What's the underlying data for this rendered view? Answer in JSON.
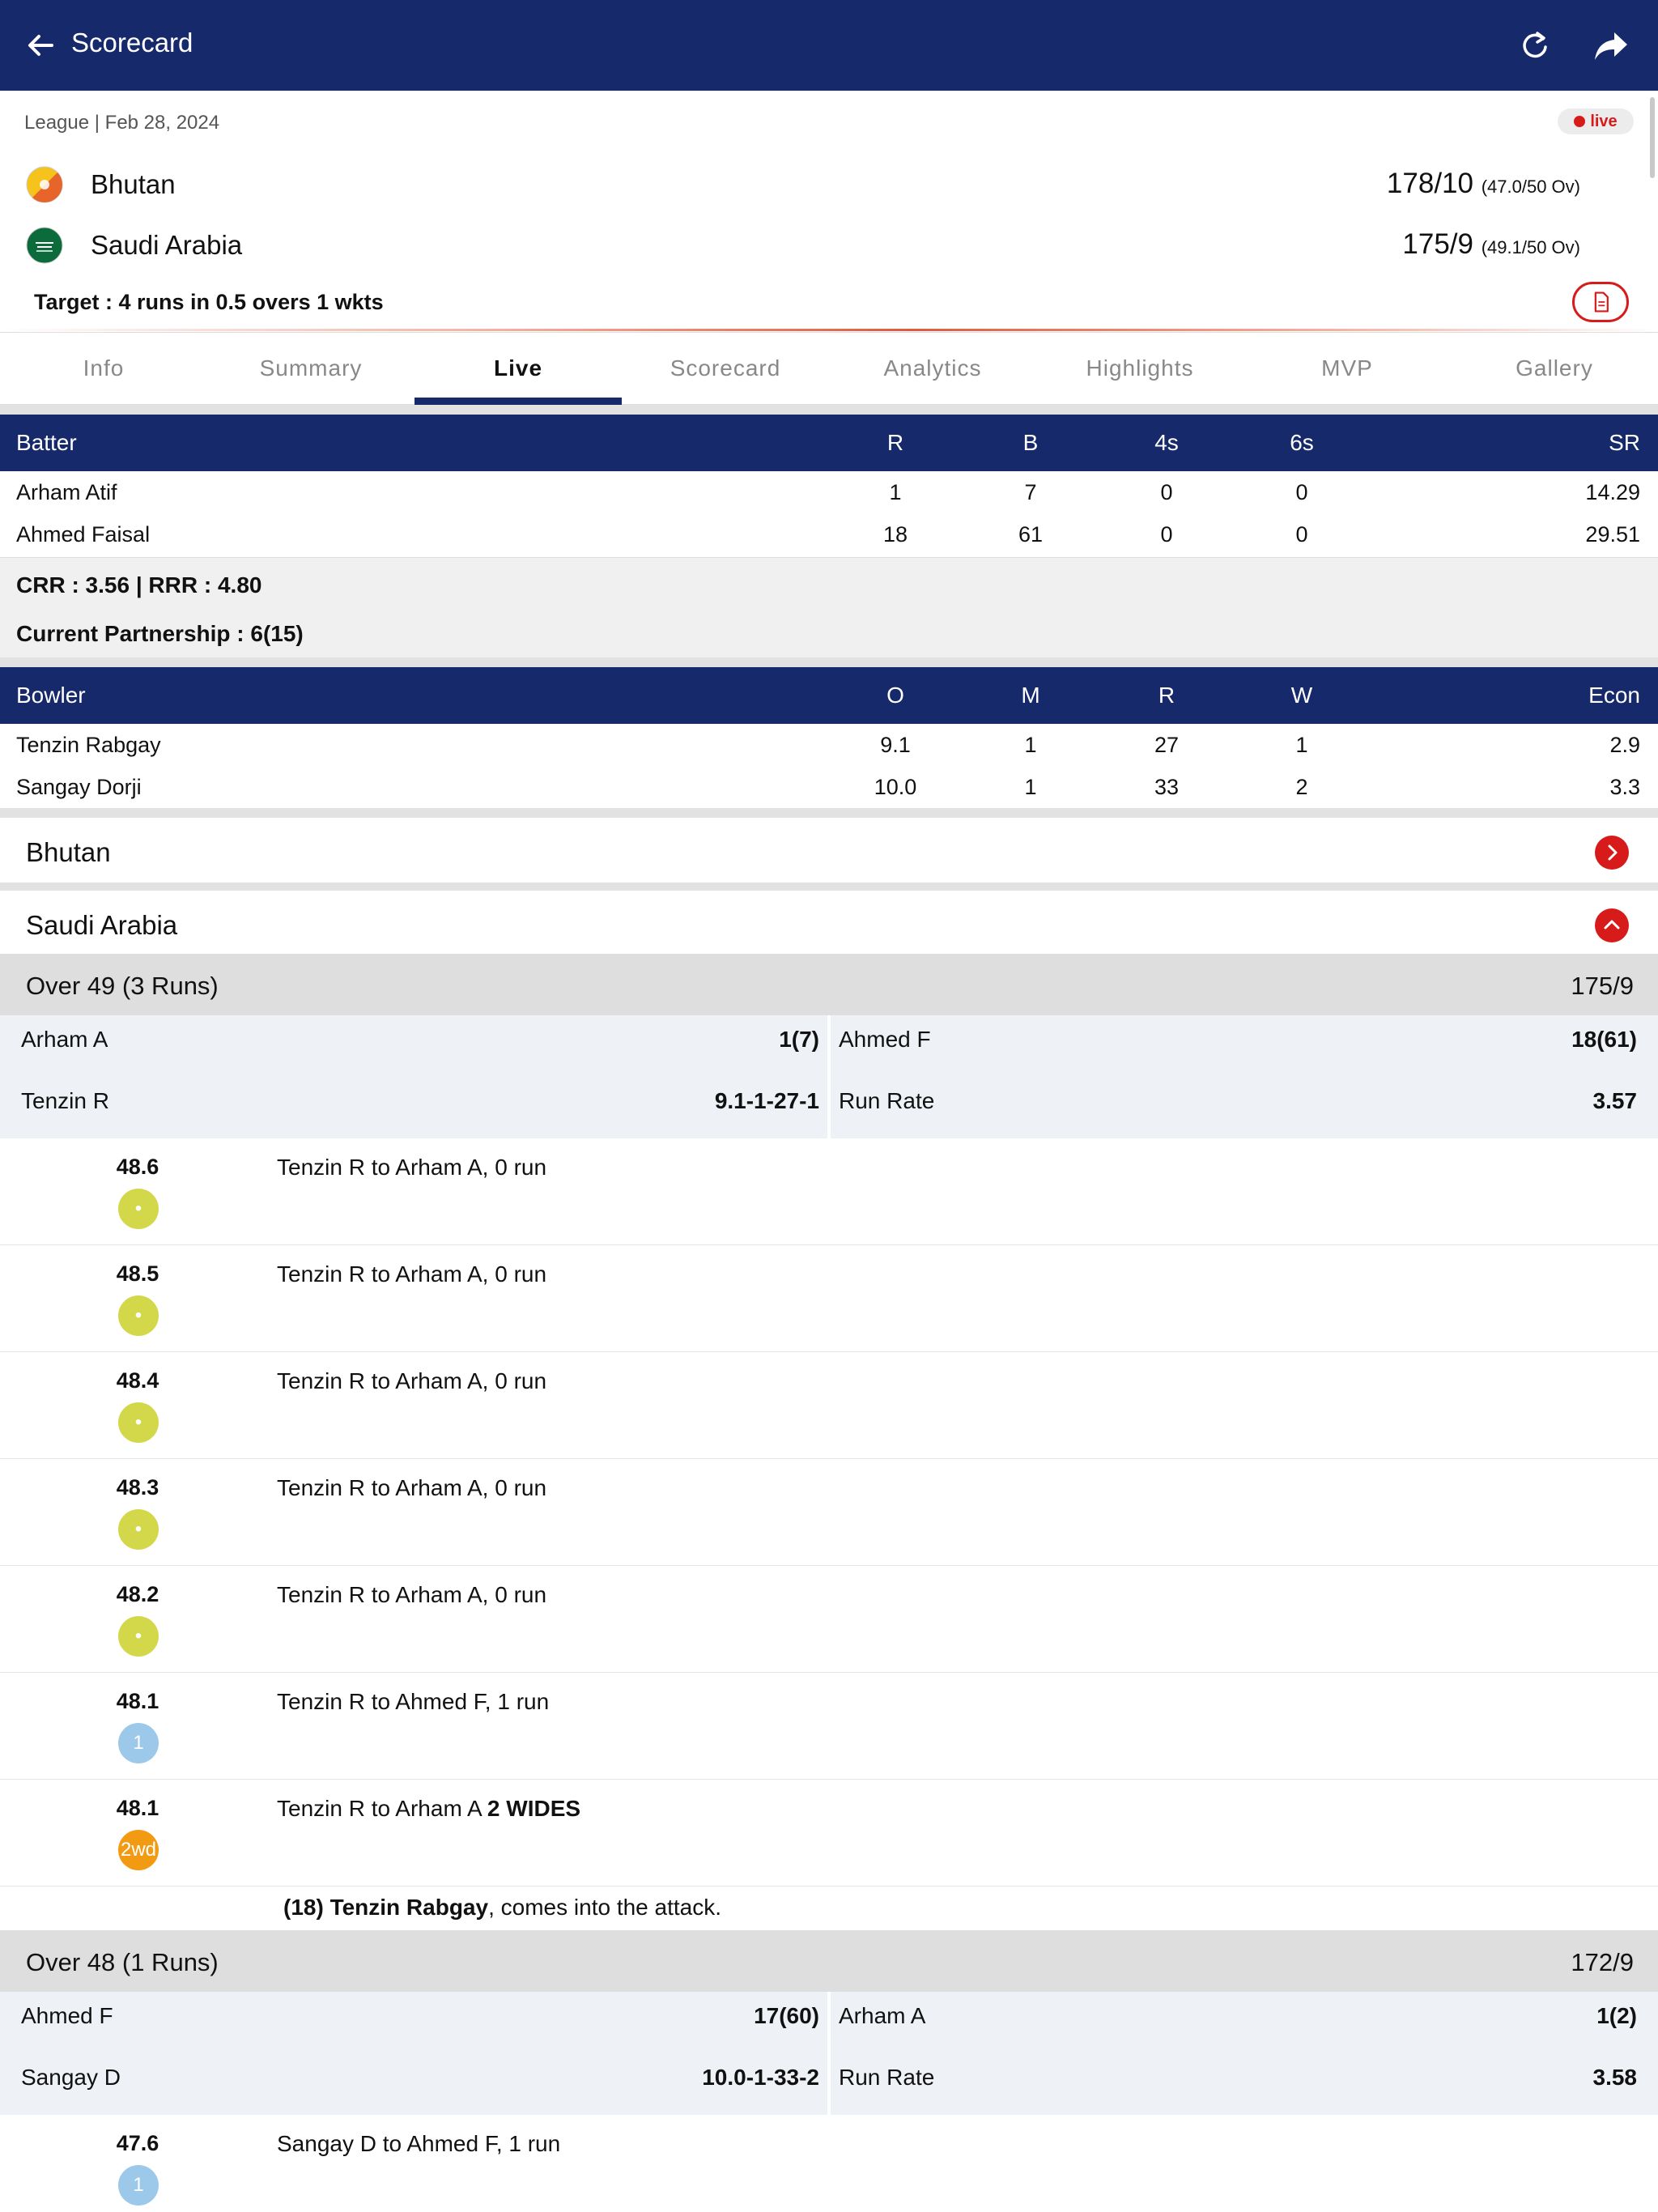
{
  "header": {
    "title": "Scorecard",
    "back_icon": "back-arrow-icon",
    "refresh_icon": "refresh-icon",
    "share_icon": "share-icon"
  },
  "match": {
    "meta": "League | Feb 28, 2024",
    "live_label": "live",
    "teams": [
      {
        "name": "Bhutan",
        "score": "178/10",
        "overs": "(47.0/50 Ov)",
        "flag_icon": "bhutan-flag-icon"
      },
      {
        "name": "Saudi Arabia",
        "score": "175/9",
        "overs": "(49.1/50 Ov)",
        "flag_icon": "saudi-arabia-flag-icon"
      }
    ],
    "target": "Target : 4 runs in 0.5 overs 1 wkts"
  },
  "tabs": [
    "Info",
    "Summary",
    "Live",
    "Scorecard",
    "Analytics",
    "Highlights",
    "MVP",
    "Gallery"
  ],
  "active_tab": "Live",
  "batting": {
    "headers": [
      "Batter",
      "R",
      "B",
      "4s",
      "6s",
      "SR"
    ],
    "rows": [
      [
        "Arham Atif",
        "1",
        "7",
        "0",
        "0",
        "14.29"
      ],
      [
        "Ahmed Faisal",
        "18",
        "61",
        "0",
        "0",
        "29.51"
      ]
    ],
    "crr_line": "CRR : 3.56 | RRR : 4.80",
    "partnership": "Current Partnership : 6(15)"
  },
  "bowling": {
    "headers": [
      "Bowler",
      "O",
      "M",
      "R",
      "W",
      "Econ"
    ],
    "rows": [
      [
        "Tenzin Rabgay",
        "9.1",
        "1",
        "27",
        "1",
        "2.9"
      ],
      [
        "Sangay Dorji",
        "10.0",
        "1",
        "33",
        "2",
        "3.3"
      ]
    ]
  },
  "innings": [
    {
      "name": "Bhutan",
      "state": "collapsed"
    },
    {
      "name": "Saudi Arabia",
      "state": "expanded"
    }
  ],
  "overs": [
    {
      "title": "Over 49 (3 Runs)",
      "total": "175/9",
      "batter1": "Arham A",
      "batter1_score": "1(7)",
      "batter2": "Ahmed F",
      "batter2_score": "18(61)",
      "bowler": "Tenzin R",
      "bowler_figures": "9.1-1-27-1",
      "rr_label": "Run Rate",
      "rr": "3.57",
      "balls": [
        {
          "num": "48.6",
          "chip": "•",
          "kind": "dot",
          "text": "Tenzin R to Arham A, 0 run",
          "bold": ""
        },
        {
          "num": "48.5",
          "chip": "•",
          "kind": "dot",
          "text": "Tenzin R to Arham A, 0 run",
          "bold": ""
        },
        {
          "num": "48.4",
          "chip": "•",
          "kind": "dot",
          "text": "Tenzin R to Arham A, 0 run",
          "bold": ""
        },
        {
          "num": "48.3",
          "chip": "•",
          "kind": "dot",
          "text": "Tenzin R to Arham A, 0 run",
          "bold": ""
        },
        {
          "num": "48.2",
          "chip": "•",
          "kind": "dot",
          "text": "Tenzin R to Arham A, 0 run",
          "bold": ""
        },
        {
          "num": "48.1",
          "chip": "1",
          "kind": "one",
          "text": "Tenzin R to Ahmed F, 1 run",
          "bold": ""
        },
        {
          "num": "48.1",
          "chip": "2wd",
          "kind": "wide",
          "text": "Tenzin R to Arham A ",
          "bold": "2 WIDES"
        }
      ],
      "attack_bold": "(18) Tenzin Rabgay",
      "attack_text": ", comes into the attack."
    },
    {
      "title": "Over 48 (1 Runs)",
      "total": "172/9",
      "batter1": "Ahmed F",
      "batter1_score": "17(60)",
      "batter2": "Arham A",
      "batter2_score": "1(2)",
      "bowler": "Sangay D",
      "bowler_figures": "10.0-1-33-2",
      "rr_label": "Run Rate",
      "rr": "3.58",
      "balls": [
        {
          "num": "47.6",
          "chip": "1",
          "kind": "one",
          "text": "Sangay D to Ahmed F, 1 run",
          "bold": ""
        }
      ]
    }
  ],
  "colors": {
    "primary": "#15296b",
    "accent_red": "#d71a1a",
    "dot_ball": "#d2d84a",
    "single": "#9cc9ea",
    "wide": "#f29a12"
  }
}
